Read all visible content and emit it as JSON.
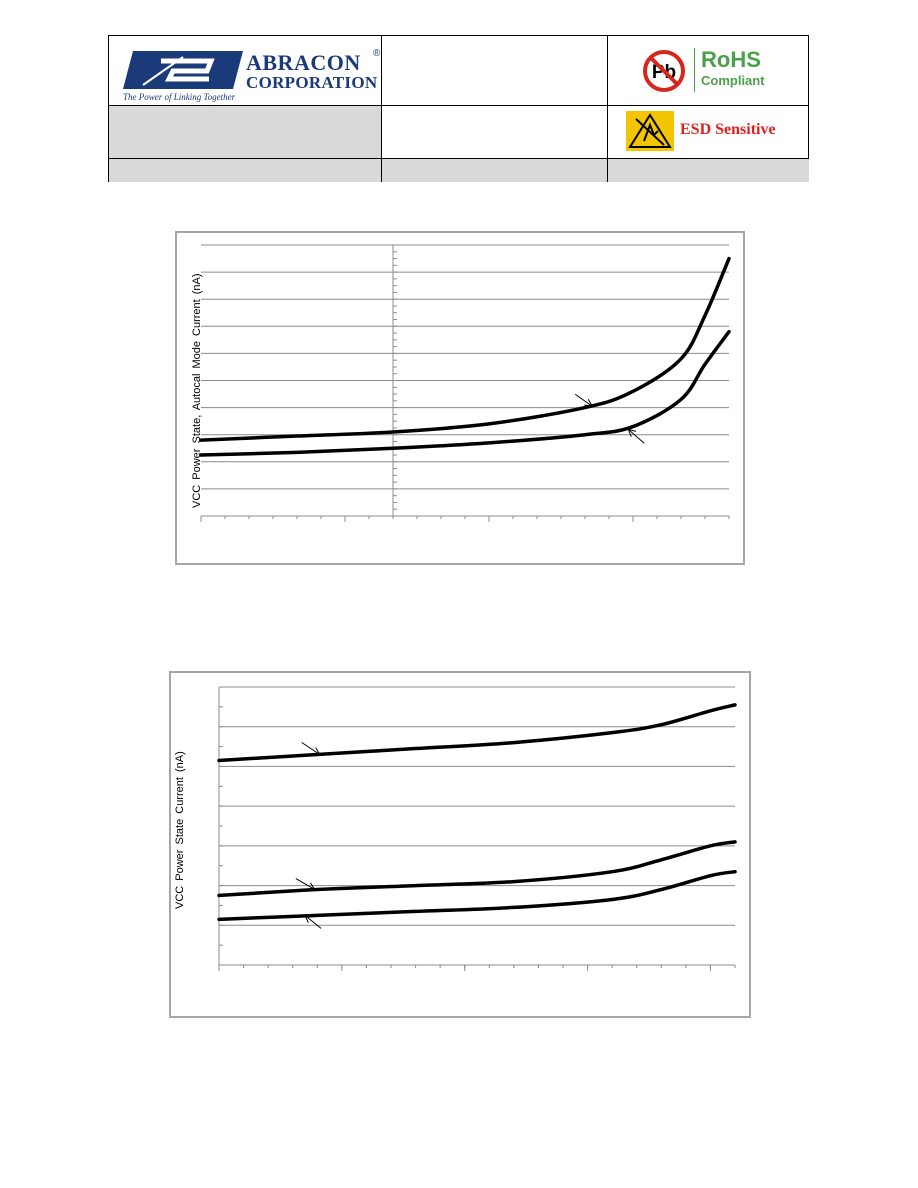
{
  "header": {
    "logo": {
      "brand_line1": "ABRACON",
      "brand_line2": "CORPORATION",
      "registered": "®",
      "tagline": "The Power of Linking Together"
    },
    "rohs": {
      "badge_icon": "no-lead-icon",
      "title": "RoHS",
      "subtitle": "Compliant"
    },
    "esd": {
      "badge_icon": "esd-warning-icon",
      "label": "ESD Sensitive"
    }
  },
  "colors": {
    "brand_blue": "#1b3a7a",
    "rohs_green": "#4aa14a",
    "esd_red": "#e0201d",
    "header_gray": "#d9d9d9",
    "frame_gray": "#a6a6a6"
  },
  "chart_data": [
    {
      "type": "line",
      "title": "",
      "ylabel": "VCC Power State, Autocal Mode Current  (nA)",
      "xlabel": "",
      "xlim": [
        0,
        22
      ],
      "ylim": [
        0,
        10
      ],
      "grid": true,
      "series": [
        {
          "x": [
            0,
            4,
            8,
            12,
            16,
            18,
            20,
            21,
            22
          ],
          "y": [
            2.8,
            2.95,
            3.1,
            3.4,
            4.0,
            4.6,
            5.8,
            7.4,
            9.5
          ]
        },
        {
          "x": [
            0,
            4,
            8,
            12,
            16,
            18,
            20,
            21,
            22
          ],
          "y": [
            2.25,
            2.35,
            2.5,
            2.7,
            3.0,
            3.3,
            4.3,
            5.6,
            6.8
          ]
        }
      ]
    },
    {
      "type": "line",
      "title": "",
      "ylabel": "VCC Power State Current  (nA)",
      "xlabel": "",
      "xlim": [
        0,
        21
      ],
      "ylim": [
        0,
        7
      ],
      "grid": true,
      "series": [
        {
          "x": [
            0,
            4,
            8,
            12,
            16,
            18,
            20,
            21
          ],
          "y": [
            5.15,
            5.3,
            5.45,
            5.6,
            5.85,
            6.05,
            6.4,
            6.55
          ]
        },
        {
          "x": [
            0,
            4,
            8,
            12,
            16,
            18,
            20,
            21
          ],
          "y": [
            1.75,
            1.9,
            2.0,
            2.1,
            2.35,
            2.65,
            3.0,
            3.1
          ]
        },
        {
          "x": [
            0,
            4,
            8,
            12,
            16,
            18,
            20,
            21
          ],
          "y": [
            1.15,
            1.25,
            1.35,
            1.45,
            1.65,
            1.9,
            2.25,
            2.35
          ]
        }
      ]
    }
  ]
}
